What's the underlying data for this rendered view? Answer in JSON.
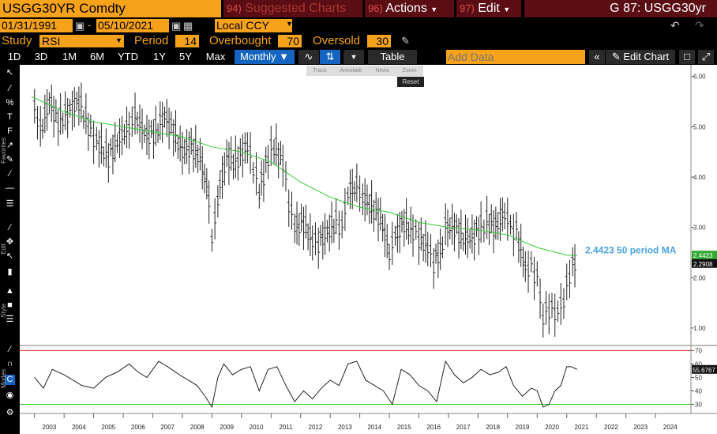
{
  "header": {
    "ticker": "USGG30YR Comdty",
    "suggested": {
      "num": "94)",
      "label": "Suggested Charts"
    },
    "actions": {
      "num": "96)",
      "label": "Actions"
    },
    "edit": {
      "num": "97)",
      "label": "Edit"
    },
    "chart_title": "G 87: USGG30yr"
  },
  "range": {
    "start": "01/31/1991",
    "end": "05/10/2021",
    "currency": "Local CCY"
  },
  "study": {
    "label": "Study",
    "value": "RSI",
    "period_label": "Period",
    "period": "14",
    "overbought_label": "Overbought",
    "overbought": "70",
    "oversold_label": "Oversold",
    "oversold": "30"
  },
  "toolbar": {
    "periods": [
      "1D",
      "3D",
      "1M",
      "6M",
      "YTD",
      "1Y",
      "5Y",
      "Max"
    ],
    "frequency": "Monthly",
    "table_label": "Table",
    "add_data_placeholder": "Add Data",
    "edit_chart": "Edit Chart"
  },
  "chart_tools": {
    "track": "Track",
    "annotate": "Annotate",
    "news": "News",
    "zoom": "Zoom",
    "reset": "Reset"
  },
  "side_labels": {
    "favorites": "Favorites",
    "edit": "Edit",
    "style": "Style",
    "modes": "Modes"
  },
  "colors": {
    "accent": "#f7a21b",
    "ma_line": "#33cc33",
    "ma_label": "#4aa3df",
    "overbought_line": "#e03030",
    "oversold_line": "#33cc33"
  },
  "chart_data": [
    {
      "type": "ohlc-bar",
      "x_ticks": [
        "2003",
        "2004",
        "2005",
        "2006",
        "2007",
        "2008",
        "2009",
        "2010",
        "2011",
        "2012",
        "2013",
        "2014",
        "2015",
        "2016",
        "2017",
        "2018",
        "2019",
        "2020",
        "2021",
        "2022",
        "2023",
        "2024"
      ],
      "y_ticks": [
        "6.00",
        "5.00",
        "4.00",
        "3.00",
        "2.00",
        "1.00"
      ],
      "ylim": [
        0.7,
        6.2
      ],
      "last_value": "2.2908",
      "ma_last_value": "2.4423",
      "ma_annotation": "2.4423 50 period MA",
      "price_path": [
        [
          2003.0,
          5.4
        ],
        [
          2003.2,
          4.9
        ],
        [
          2003.5,
          5.5
        ],
        [
          2003.8,
          5.1
        ],
        [
          2004.2,
          5.3
        ],
        [
          2004.5,
          5.5
        ],
        [
          2004.9,
          4.9
        ],
        [
          2005.1,
          4.7
        ],
        [
          2005.5,
          4.4
        ],
        [
          2005.8,
          4.7
        ],
        [
          2006.2,
          5.0
        ],
        [
          2006.4,
          5.2
        ],
        [
          2006.8,
          4.8
        ],
        [
          2007.1,
          4.9
        ],
        [
          2007.4,
          5.2
        ],
        [
          2007.7,
          4.9
        ],
        [
          2008.0,
          4.5
        ],
        [
          2008.3,
          4.6
        ],
        [
          2008.6,
          4.4
        ],
        [
          2008.9,
          3.6
        ],
        [
          2009.0,
          2.7
        ],
        [
          2009.2,
          3.6
        ],
        [
          2009.5,
          4.4
        ],
        [
          2009.8,
          4.3
        ],
        [
          2010.2,
          4.6
        ],
        [
          2010.4,
          4.2
        ],
        [
          2010.6,
          3.7
        ],
        [
          2010.9,
          4.4
        ],
        [
          2011.1,
          4.6
        ],
        [
          2011.4,
          4.3
        ],
        [
          2011.6,
          3.5
        ],
        [
          2011.8,
          3.0
        ],
        [
          2012.1,
          3.1
        ],
        [
          2012.4,
          2.7
        ],
        [
          2012.6,
          2.7
        ],
        [
          2012.9,
          2.9
        ],
        [
          2013.2,
          3.1
        ],
        [
          2013.4,
          3.0
        ],
        [
          2013.6,
          3.7
        ],
        [
          2013.9,
          3.8
        ],
        [
          2014.1,
          3.6
        ],
        [
          2014.4,
          3.4
        ],
        [
          2014.7,
          3.2
        ],
        [
          2015.0,
          2.5
        ],
        [
          2015.2,
          2.8
        ],
        [
          2015.5,
          3.1
        ],
        [
          2015.8,
          2.9
        ],
        [
          2016.0,
          2.8
        ],
        [
          2016.3,
          2.6
        ],
        [
          2016.5,
          2.3
        ],
        [
          2016.8,
          2.6
        ],
        [
          2016.9,
          3.0
        ],
        [
          2017.2,
          3.0
        ],
        [
          2017.5,
          2.8
        ],
        [
          2017.8,
          2.8
        ],
        [
          2018.1,
          3.0
        ],
        [
          2018.3,
          3.1
        ],
        [
          2018.6,
          3.0
        ],
        [
          2018.9,
          3.3
        ],
        [
          2019.1,
          3.0
        ],
        [
          2019.3,
          2.9
        ],
        [
          2019.6,
          2.2
        ],
        [
          2019.8,
          2.2
        ],
        [
          2020.0,
          2.0
        ],
        [
          2020.2,
          1.2
        ],
        [
          2020.4,
          1.4
        ],
        [
          2020.6,
          1.3
        ],
        [
          2020.8,
          1.4
        ],
        [
          2020.9,
          1.6
        ],
        [
          2021.0,
          1.8
        ],
        [
          2021.2,
          2.3
        ],
        [
          2021.35,
          2.29
        ]
      ],
      "ma_path": [
        [
          2002.9,
          5.6
        ],
        [
          2004.0,
          5.3
        ],
        [
          2005.0,
          5.1
        ],
        [
          2006.0,
          5.0
        ],
        [
          2007.0,
          4.9
        ],
        [
          2008.0,
          4.8
        ],
        [
          2009.0,
          4.6
        ],
        [
          2010.0,
          4.5
        ],
        [
          2011.0,
          4.3
        ],
        [
          2012.0,
          3.9
        ],
        [
          2013.0,
          3.6
        ],
        [
          2014.0,
          3.4
        ],
        [
          2015.0,
          3.3
        ],
        [
          2016.0,
          3.1
        ],
        [
          2017.0,
          3.0
        ],
        [
          2018.0,
          2.95
        ],
        [
          2019.0,
          2.85
        ],
        [
          2020.0,
          2.6
        ],
        [
          2021.0,
          2.45
        ],
        [
          2021.35,
          2.44
        ]
      ]
    },
    {
      "type": "line",
      "title": "RSI",
      "y_ticks": [
        "70",
        "60",
        "50",
        "40",
        "30"
      ],
      "ylim": [
        25,
        72
      ],
      "last_value": "55.6767",
      "overbought": 70,
      "oversold": 30,
      "rsi_path": [
        [
          2003.0,
          50
        ],
        [
          2003.3,
          42
        ],
        [
          2003.6,
          56
        ],
        [
          2004.0,
          52
        ],
        [
          2004.3,
          48
        ],
        [
          2004.6,
          44
        ],
        [
          2005.0,
          42
        ],
        [
          2005.4,
          50
        ],
        [
          2005.8,
          54
        ],
        [
          2006.2,
          60
        ],
        [
          2006.5,
          54
        ],
        [
          2006.8,
          50
        ],
        [
          2007.2,
          62
        ],
        [
          2007.5,
          58
        ],
        [
          2007.9,
          52
        ],
        [
          2008.2,
          48
        ],
        [
          2008.5,
          44
        ],
        [
          2008.8,
          35
        ],
        [
          2009.0,
          28
        ],
        [
          2009.2,
          50
        ],
        [
          2009.4,
          60
        ],
        [
          2009.7,
          52
        ],
        [
          2010.0,
          56
        ],
        [
          2010.3,
          58
        ],
        [
          2010.6,
          40
        ],
        [
          2010.9,
          56
        ],
        [
          2011.2,
          58
        ],
        [
          2011.5,
          44
        ],
        [
          2011.8,
          32
        ],
        [
          2012.1,
          40
        ],
        [
          2012.4,
          34
        ],
        [
          2012.7,
          42
        ],
        [
          2013.0,
          48
        ],
        [
          2013.3,
          44
        ],
        [
          2013.6,
          60
        ],
        [
          2013.9,
          62
        ],
        [
          2014.2,
          48
        ],
        [
          2014.5,
          44
        ],
        [
          2014.8,
          40
        ],
        [
          2015.1,
          30
        ],
        [
          2015.4,
          56
        ],
        [
          2015.7,
          52
        ],
        [
          2016.0,
          44
        ],
        [
          2016.3,
          40
        ],
        [
          2016.6,
          32
        ],
        [
          2016.9,
          62
        ],
        [
          2017.2,
          52
        ],
        [
          2017.5,
          46
        ],
        [
          2017.8,
          50
        ],
        [
          2018.1,
          56
        ],
        [
          2018.4,
          52
        ],
        [
          2018.7,
          54
        ],
        [
          2018.95,
          58
        ],
        [
          2019.2,
          44
        ],
        [
          2019.5,
          36
        ],
        [
          2019.8,
          42
        ],
        [
          2020.0,
          40
        ],
        [
          2020.2,
          28
        ],
        [
          2020.4,
          30
        ],
        [
          2020.6,
          40
        ],
        [
          2020.8,
          44
        ],
        [
          2021.0,
          58
        ],
        [
          2021.15,
          58
        ],
        [
          2021.35,
          56
        ]
      ]
    }
  ]
}
